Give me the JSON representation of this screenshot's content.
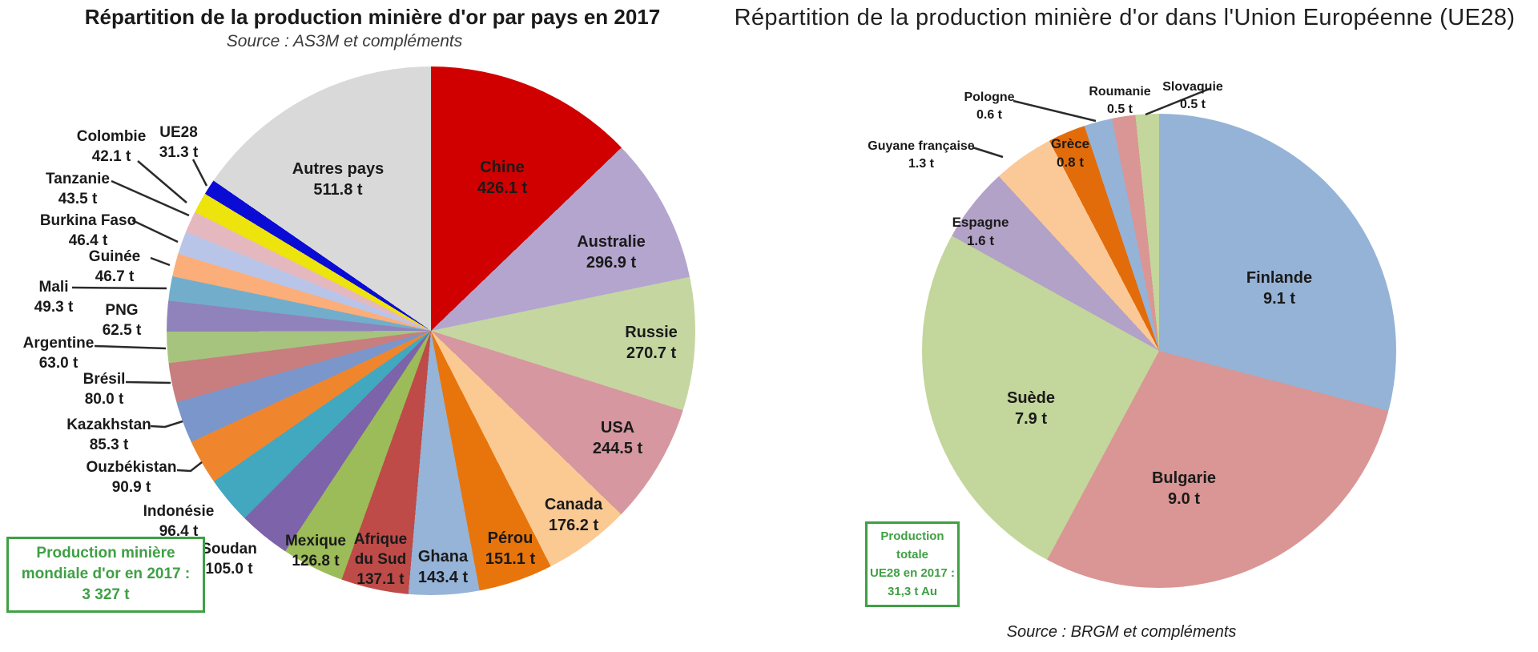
{
  "page": {
    "background": "#FFFFFF",
    "text_color": "#1A1A1A",
    "accent_green": "#3FA044",
    "leader_line_color": "#2B2B2B"
  },
  "chart_data": [
    {
      "type": "pie",
      "name": "world-gold-mining-production-2017",
      "title": "Répartition de la production minière d'or par pays en 2017",
      "source": "Source : AS3M et compléments",
      "unit": "t",
      "total_tonnes": 3327,
      "total_box": {
        "line1": "Production minière",
        "line2": "mondiale d'or en 2017 :",
        "line3": "3 327 t"
      },
      "legend_position": "labels-on-chart",
      "slices": [
        {
          "label": "Chine",
          "value": 426.1,
          "color": "#D00000"
        },
        {
          "label": "Australie",
          "value": 296.9,
          "color": "#B4A5CE"
        },
        {
          "label": "Russie",
          "value": 270.7,
          "color": "#C5D6A1"
        },
        {
          "label": "USA",
          "value": 244.5,
          "color": "#D697A0"
        },
        {
          "label": "Canada",
          "value": 176.2,
          "color": "#FBCA93"
        },
        {
          "label": "Pérou",
          "value": 151.1,
          "color": "#E8750C"
        },
        {
          "label": "Ghana",
          "value": 143.4,
          "color": "#96B3D8"
        },
        {
          "label": "Afrique du Sud",
          "value": 137.1,
          "color": "#BE4B48"
        },
        {
          "label": "Mexique",
          "value": 126.8,
          "color": "#9CBB59"
        },
        {
          "label": "Soudan",
          "value": 105.0,
          "color": "#7D63A9"
        },
        {
          "label": "Indonésie",
          "value": 96.4,
          "color": "#41A8C0"
        },
        {
          "label": "Ouzbékistan",
          "value": 90.9,
          "color": "#EF862E"
        },
        {
          "label": "Kazakhstan",
          "value": 85.3,
          "color": "#7B96CB"
        },
        {
          "label": "Brésil",
          "value": 80.0,
          "color": "#C87E7E"
        },
        {
          "label": "Argentine",
          "value": 63.0,
          "color": "#A6C47E"
        },
        {
          "label": "PNG",
          "value": 62.5,
          "color": "#9083BC"
        },
        {
          "label": "Mali",
          "value": 49.3,
          "color": "#72AECC"
        },
        {
          "label": "Guinée",
          "value": 46.7,
          "color": "#FBAE7A"
        },
        {
          "label": "Burkina Faso",
          "value": 46.4,
          "color": "#B9C5E8"
        },
        {
          "label": "Tanzanie",
          "value": 43.5,
          "color": "#E5B8BF"
        },
        {
          "label": "Colombie",
          "value": 42.1,
          "color": "#ECE40C"
        },
        {
          "label": "UE28",
          "value": 31.3,
          "color": "#0B0BD6"
        },
        {
          "label": "Autres pays",
          "value": 511.8,
          "color": "#D9D9D9"
        }
      ]
    },
    {
      "type": "pie",
      "name": "ue28-gold-mining-production-2017",
      "title": "Répartition de la production minière d'or dans l'Union Européenne (UE28)",
      "source": "Source : BRGM et compléments",
      "unit": "t",
      "total_tonnes": 31.3,
      "total_box": {
        "line1": "Production totale",
        "line2": "UE28 en 2017 :",
        "line3": "31,3 t Au"
      },
      "legend_position": "labels-on-chart",
      "slices": [
        {
          "label": "Finlande",
          "value": 9.1,
          "color": "#95B3D7"
        },
        {
          "label": "Bulgarie",
          "value": 9.0,
          "color": "#D99694"
        },
        {
          "label": "Suède",
          "value": 7.9,
          "color": "#C3D69B"
        },
        {
          "label": "Espagne",
          "value": 1.6,
          "color": "#B3A2C7"
        },
        {
          "label": "Guyane française",
          "value": 1.3,
          "color": "#FBC998"
        },
        {
          "label": "Grèce",
          "value": 0.8,
          "color": "#E36C0A"
        },
        {
          "label": "Pologne",
          "value": 0.6,
          "color": "#95B3D7"
        },
        {
          "label": "Roumanie",
          "value": 0.5,
          "color": "#D99694"
        },
        {
          "label": "Slovaquie",
          "value": 0.5,
          "color": "#C3D69B"
        }
      ]
    }
  ]
}
